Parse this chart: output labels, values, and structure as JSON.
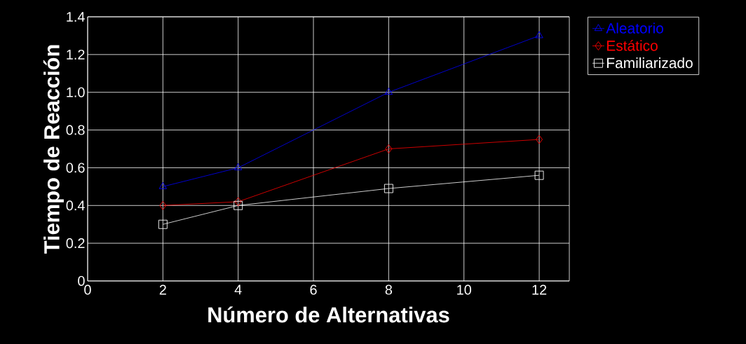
{
  "chart_data": {
    "type": "line",
    "xlabel": "Número de Alternativas",
    "ylabel": "Tiempo de Reacción",
    "x": [
      2,
      4,
      8,
      12
    ],
    "series": [
      {
        "name": "Aleatorio",
        "color": "#0000ff",
        "marker": "triangle",
        "values": [
          0.5,
          0.6,
          1.0,
          1.3
        ]
      },
      {
        "name": "Estático",
        "color": "#ff0000",
        "marker": "diamond",
        "values": [
          0.4,
          0.42,
          0.7,
          0.75
        ]
      },
      {
        "name": "Familiarizado",
        "color": "#ffffff",
        "marker": "square",
        "values": [
          0.3,
          0.4,
          0.49,
          0.56
        ]
      }
    ],
    "xlim": [
      0,
      12.8
    ],
    "ylim": [
      0,
      1.4
    ],
    "xticks": [
      0,
      2,
      4,
      6,
      8,
      10,
      12
    ],
    "yticks": [
      0,
      0.2,
      0.4,
      0.6,
      0.8,
      {
        "value": 1,
        "label": "1.0"
      },
      1.2,
      1.4
    ],
    "grid": true,
    "legend": "right"
  }
}
